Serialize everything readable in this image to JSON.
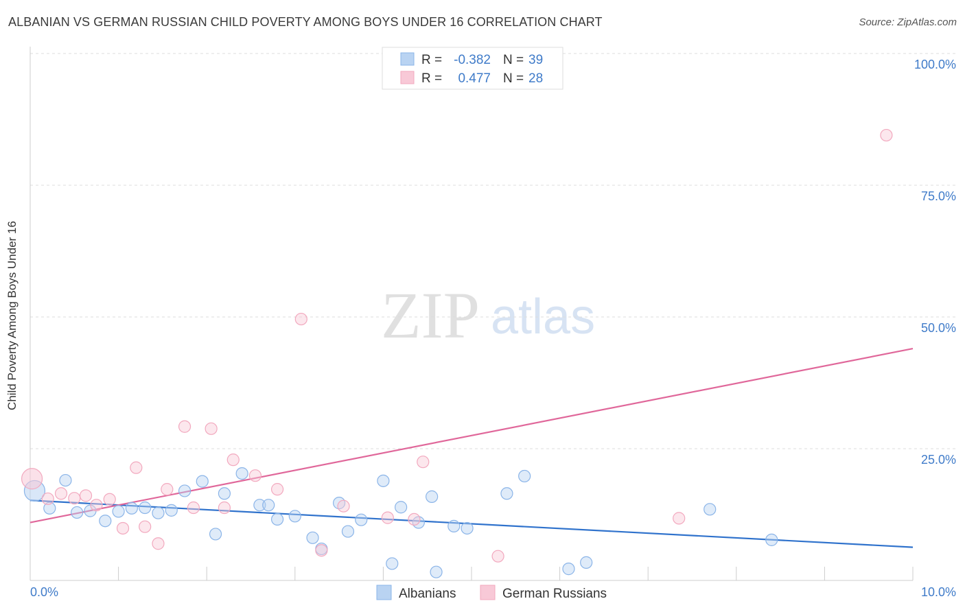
{
  "title": "ALBANIAN VS GERMAN RUSSIAN CHILD POVERTY AMONG BOYS UNDER 16 CORRELATION CHART",
  "source": "Source: ZipAtlas.com",
  "watermark": {
    "zip": "ZIP",
    "atlas": "atlas"
  },
  "chart_data": {
    "type": "scatter",
    "title": "ALBANIAN VS GERMAN RUSSIAN CHILD POVERTY AMONG BOYS UNDER 16 CORRELATION CHART",
    "xlabel": "",
    "ylabel": "Child Poverty Among Boys Under 16",
    "xlim": [
      0,
      10
    ],
    "ylim": [
      0,
      100
    ],
    "x_tick_labels": [
      "0.0%",
      "10.0%"
    ],
    "y_ticks": [
      25,
      50,
      75,
      100
    ],
    "y_tick_labels": [
      "25.0%",
      "50.0%",
      "75.0%",
      "100.0%"
    ],
    "grid": true,
    "legend_position": "top-center",
    "series": [
      {
        "name": "Albanians",
        "color": "#8ab4e8",
        "fill": "#b9d3f2",
        "line_color": "#2f72cc",
        "R": "-0.382",
        "N": "39",
        "trend": {
          "x": [
            0,
            10
          ],
          "y": [
            15.2,
            6.3
          ]
        },
        "points": [
          {
            "x": 0.05,
            "y": 17.0,
            "big": true
          },
          {
            "x": 0.22,
            "y": 13.7
          },
          {
            "x": 0.4,
            "y": 19.0
          },
          {
            "x": 0.53,
            "y": 12.9
          },
          {
            "x": 0.68,
            "y": 13.2
          },
          {
            "x": 0.85,
            "y": 11.3
          },
          {
            "x": 1.0,
            "y": 13.1
          },
          {
            "x": 1.15,
            "y": 13.7
          },
          {
            "x": 1.3,
            "y": 13.8
          },
          {
            "x": 1.45,
            "y": 12.8
          },
          {
            "x": 1.6,
            "y": 13.3
          },
          {
            "x": 1.75,
            "y": 17.0
          },
          {
            "x": 1.95,
            "y": 18.8
          },
          {
            "x": 2.1,
            "y": 8.8
          },
          {
            "x": 2.2,
            "y": 16.5
          },
          {
            "x": 2.4,
            "y": 20.3
          },
          {
            "x": 2.6,
            "y": 14.3
          },
          {
            "x": 2.7,
            "y": 14.3
          },
          {
            "x": 2.8,
            "y": 11.6
          },
          {
            "x": 3.0,
            "y": 12.2
          },
          {
            "x": 3.2,
            "y": 8.1
          },
          {
            "x": 3.3,
            "y": 6.0
          },
          {
            "x": 3.5,
            "y": 14.7
          },
          {
            "x": 3.6,
            "y": 9.3
          },
          {
            "x": 3.75,
            "y": 11.5
          },
          {
            "x": 4.0,
            "y": 18.9
          },
          {
            "x": 4.1,
            "y": 3.2
          },
          {
            "x": 4.2,
            "y": 13.9
          },
          {
            "x": 4.4,
            "y": 11.0
          },
          {
            "x": 4.55,
            "y": 15.9
          },
          {
            "x": 4.6,
            "y": 1.6
          },
          {
            "x": 4.8,
            "y": 10.3
          },
          {
            "x": 4.95,
            "y": 9.9
          },
          {
            "x": 5.4,
            "y": 16.5
          },
          {
            "x": 5.6,
            "y": 19.8
          },
          {
            "x": 6.1,
            "y": 2.2
          },
          {
            "x": 6.3,
            "y": 3.4
          },
          {
            "x": 7.7,
            "y": 13.5
          },
          {
            "x": 8.4,
            "y": 7.7
          }
        ]
      },
      {
        "name": "German Russians",
        "color": "#f2a8be",
        "fill": "#f8c9d7",
        "line_color": "#e0679a",
        "R": "0.477",
        "N": "28",
        "trend": {
          "x": [
            0,
            10
          ],
          "y": [
            11.0,
            44.0
          ]
        },
        "points": [
          {
            "x": 0.02,
            "y": 19.3,
            "big": true
          },
          {
            "x": 0.2,
            "y": 15.5
          },
          {
            "x": 0.35,
            "y": 16.5
          },
          {
            "x": 0.5,
            "y": 15.6
          },
          {
            "x": 0.63,
            "y": 16.1
          },
          {
            "x": 0.75,
            "y": 14.3
          },
          {
            "x": 0.9,
            "y": 15.4
          },
          {
            "x": 1.05,
            "y": 9.9
          },
          {
            "x": 1.2,
            "y": 21.4
          },
          {
            "x": 1.3,
            "y": 10.2
          },
          {
            "x": 1.45,
            "y": 7.0
          },
          {
            "x": 1.55,
            "y": 17.3
          },
          {
            "x": 1.75,
            "y": 29.2
          },
          {
            "x": 1.85,
            "y": 13.8
          },
          {
            "x": 2.05,
            "y": 28.8
          },
          {
            "x": 2.2,
            "y": 13.8
          },
          {
            "x": 2.3,
            "y": 22.9
          },
          {
            "x": 2.55,
            "y": 19.9
          },
          {
            "x": 2.8,
            "y": 17.3
          },
          {
            "x": 3.07,
            "y": 49.6
          },
          {
            "x": 3.3,
            "y": 5.7
          },
          {
            "x": 3.55,
            "y": 14.1
          },
          {
            "x": 4.05,
            "y": 11.9
          },
          {
            "x": 4.35,
            "y": 11.6
          },
          {
            "x": 4.45,
            "y": 22.5
          },
          {
            "x": 5.3,
            "y": 4.6
          },
          {
            "x": 7.35,
            "y": 11.8
          },
          {
            "x": 9.7,
            "y": 84.5
          }
        ]
      }
    ]
  }
}
